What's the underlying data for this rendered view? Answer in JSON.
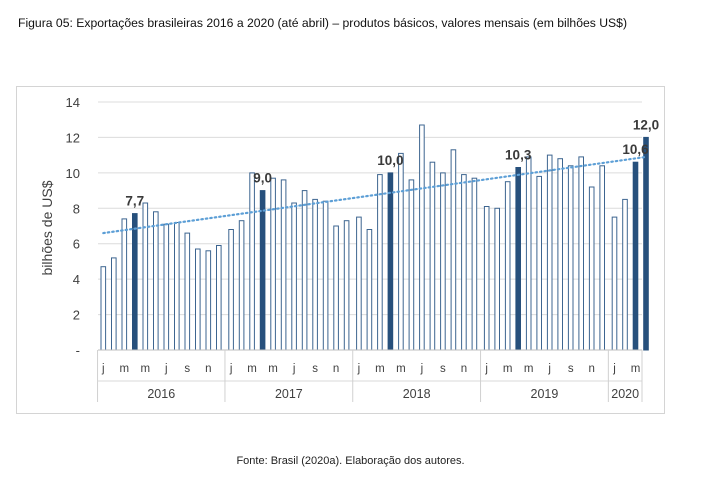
{
  "caption": "Figura 05: Exportações brasileiras 2016 a 2020 (até abril) – produtos básicos, valores mensais (em bilhões US$)",
  "source": "Fonte: Brasil (2020a). Elaboração dos autores.",
  "chart_data": {
    "type": "bar",
    "ylabel": "bilhões de US$",
    "ylim": [
      0,
      14
    ],
    "yticks": [
      "-",
      "2",
      "4",
      "6",
      "8",
      "10",
      "12",
      "14"
    ],
    "month_labels": [
      "j",
      "m",
      "m",
      "j",
      "s",
      "n",
      "j",
      "m",
      "m",
      "j",
      "s",
      "n",
      "j",
      "m",
      "m",
      "j",
      "s",
      "n",
      "j",
      "m",
      "m",
      "j",
      "s",
      "n",
      "j",
      "m"
    ],
    "years": [
      {
        "label": "2016",
        "start": 0,
        "count": 12
      },
      {
        "label": "2017",
        "start": 12,
        "count": 12
      },
      {
        "label": "2018",
        "start": 24,
        "count": 12
      },
      {
        "label": "2019",
        "start": 36,
        "count": 12
      },
      {
        "label": "2020",
        "start": 48,
        "count": 4
      }
    ],
    "values": [
      4.7,
      5.2,
      7.4,
      7.7,
      8.3,
      7.8,
      7.1,
      7.2,
      6.6,
      5.7,
      5.6,
      5.9,
      6.8,
      7.3,
      10.0,
      9.0,
      9.7,
      9.6,
      8.3,
      9.0,
      8.5,
      8.4,
      7.0,
      7.3,
      7.5,
      6.8,
      9.9,
      10.0,
      11.1,
      9.6,
      12.7,
      10.6,
      10.0,
      11.3,
      9.9,
      9.7,
      8.1,
      8.0,
      9.5,
      10.3,
      10.9,
      9.8,
      11.0,
      10.8,
      10.4,
      10.9,
      9.2,
      10.4,
      7.5,
      8.5,
      10.6,
      12.0
    ],
    "highlighted": [
      {
        "index": 3,
        "label": "7,7"
      },
      {
        "index": 15,
        "label": "9,0"
      },
      {
        "index": 27,
        "label": "10,0"
      },
      {
        "index": 39,
        "label": "10,3"
      },
      {
        "index": 50,
        "label": "10,6"
      },
      {
        "index": 51,
        "label": "12,0"
      }
    ],
    "trendline": {
      "start": 6.6,
      "end": 10.9,
      "style": "dotted"
    },
    "colors": {
      "bar_fill": "#ffffff",
      "bar_stroke": "#3d6590",
      "bar_highlight": "#27507c",
      "trend": "#5d9fd6",
      "grid": "#dcdcdc",
      "text": "#404040",
      "label": "#3a3a3a"
    }
  }
}
